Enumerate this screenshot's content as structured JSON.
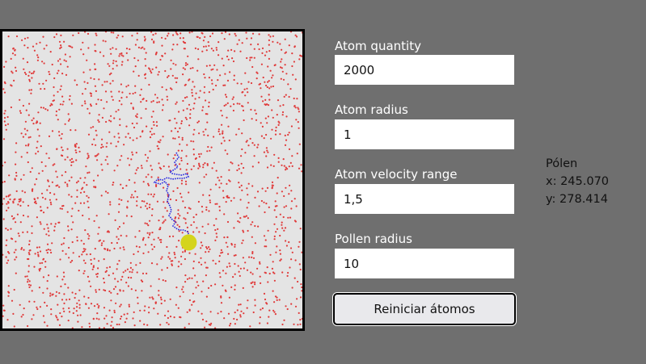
{
  "form": {
    "atom_quantity": {
      "label": "Atom quantity",
      "value": "2000"
    },
    "atom_radius": {
      "label": "Atom radius",
      "value": "1"
    },
    "atom_velocity_range": {
      "label": "Atom velocity range",
      "value": "1,5"
    },
    "pollen_radius": {
      "label": "Pollen radius",
      "value": "10"
    },
    "reset_label": "Reiniciar átomos"
  },
  "pollen": {
    "title": "Pólen",
    "x_text": "x: 245.070",
    "y_text": "y: 278.414"
  },
  "colors": {
    "atom": "#e03a3a",
    "trail": "#2a2ae0",
    "pollen": "#d4d41c",
    "canvas_bg": "#e4e4e4"
  }
}
